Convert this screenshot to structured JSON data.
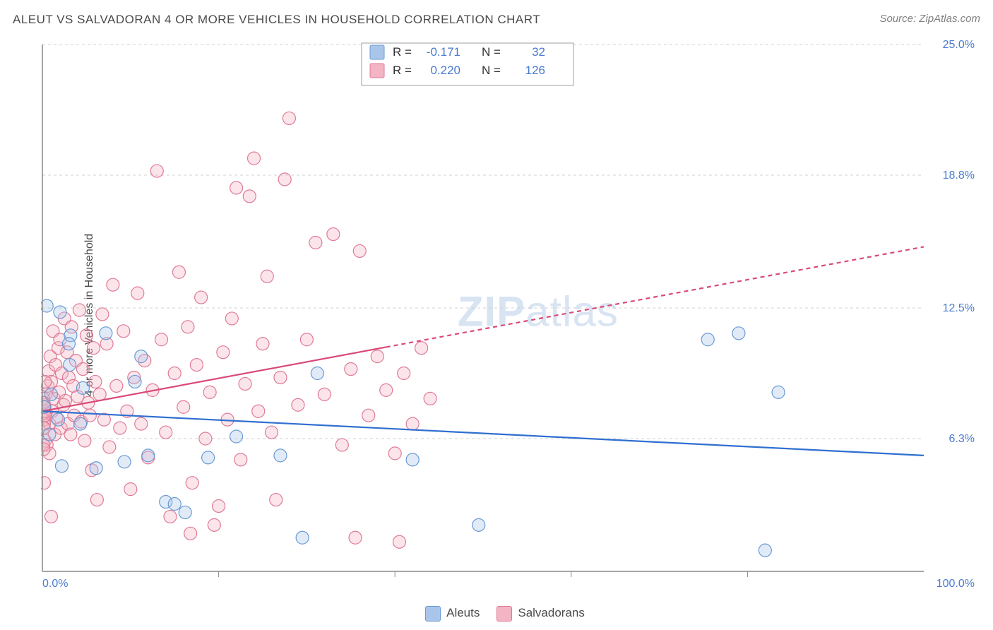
{
  "title": "ALEUT VS SALVADORAN 4 OR MORE VEHICLES IN HOUSEHOLD CORRELATION CHART",
  "source": "Source: ZipAtlas.com",
  "yaxis_label": "4 or more Vehicles in Household",
  "watermark": "ZIPatlas",
  "chart": {
    "type": "scatter",
    "xlim": [
      0,
      100
    ],
    "ylim": [
      0,
      25
    ],
    "xticks": [
      0,
      100
    ],
    "xticklabels": [
      "0.0%",
      "100.0%"
    ],
    "xtick_minor": [
      20,
      40,
      60,
      80
    ],
    "yticks": [
      6.3,
      12.5,
      18.8,
      25.0
    ],
    "yticklabels": [
      "6.3%",
      "12.5%",
      "18.8%",
      "25.0%"
    ],
    "grid_color": "#d0d0d0",
    "background_color": "#ffffff",
    "colors": {
      "series_a_stroke": "#6a9ad4",
      "series_a_fill": "#a9c6ea",
      "series_b_stroke": "#e07a96",
      "series_b_fill": "#f3b4c4",
      "trend_a": "#2f6fd0",
      "trend_b": "#d94a78",
      "tick_label": "#4a7bd0"
    },
    "marker_radius": 9,
    "series_a": {
      "label": "Aleuts",
      "R": -0.171,
      "N": 32,
      "trend": {
        "x1": 0,
        "y1": 7.6,
        "x2": 100,
        "y2": 5.5,
        "solid_until_x": 100
      },
      "points": [
        [
          0.5,
          12.6
        ],
        [
          2.0,
          12.3
        ],
        [
          3.2,
          11.2
        ],
        [
          1.0,
          8.4
        ],
        [
          3.1,
          9.8
        ],
        [
          4.6,
          8.7
        ],
        [
          7.2,
          11.3
        ],
        [
          2.2,
          5.0
        ],
        [
          6.1,
          4.9
        ],
        [
          9.3,
          5.2
        ],
        [
          10.5,
          9.0
        ],
        [
          11.2,
          10.2
        ],
        [
          14.0,
          3.3
        ],
        [
          15.0,
          3.2
        ],
        [
          16.2,
          2.8
        ],
        [
          12.0,
          5.5
        ],
        [
          18.8,
          5.4
        ],
        [
          22.0,
          6.4
        ],
        [
          27.0,
          5.5
        ],
        [
          31.2,
          9.4
        ],
        [
          29.5,
          1.6
        ],
        [
          42.0,
          5.3
        ],
        [
          49.5,
          2.2
        ],
        [
          75.5,
          11.0
        ],
        [
          79.0,
          11.3
        ],
        [
          83.5,
          8.5
        ],
        [
          82.0,
          1.0
        ],
        [
          0.8,
          6.5
        ],
        [
          4.3,
          7.0
        ],
        [
          0.2,
          7.8
        ],
        [
          1.8,
          7.2
        ],
        [
          3.0,
          10.8
        ]
      ]
    },
    "series_b": {
      "label": "Salvadorans",
      "R": 0.22,
      "N": 126,
      "trend": {
        "x1": 0,
        "y1": 7.6,
        "x2": 100,
        "y2": 15.4,
        "solid_until_x": 39
      },
      "points": [
        [
          0.1,
          6.8
        ],
        [
          0.2,
          7.2
        ],
        [
          0.2,
          7.9
        ],
        [
          0.3,
          6.2
        ],
        [
          0.4,
          8.4
        ],
        [
          0.4,
          7.5
        ],
        [
          0.5,
          6.0
        ],
        [
          0.6,
          8.8
        ],
        [
          0.7,
          9.5
        ],
        [
          0.8,
          7.0
        ],
        [
          0.8,
          5.6
        ],
        [
          0.9,
          10.2
        ],
        [
          1.0,
          9.0
        ],
        [
          1.1,
          7.6
        ],
        [
          1.2,
          11.4
        ],
        [
          1.3,
          8.2
        ],
        [
          1.4,
          6.5
        ],
        [
          1.5,
          9.8
        ],
        [
          1.6,
          7.3
        ],
        [
          1.8,
          10.6
        ],
        [
          1.9,
          8.5
        ],
        [
          2.0,
          11.0
        ],
        [
          2.1,
          6.8
        ],
        [
          2.2,
          9.4
        ],
        [
          2.4,
          7.9
        ],
        [
          2.5,
          12.0
        ],
        [
          2.6,
          8.1
        ],
        [
          2.8,
          10.4
        ],
        [
          2.9,
          7.0
        ],
        [
          3.0,
          9.2
        ],
        [
          3.2,
          6.5
        ],
        [
          3.3,
          11.6
        ],
        [
          3.5,
          8.8
        ],
        [
          3.6,
          7.4
        ],
        [
          3.8,
          10.0
        ],
        [
          4.0,
          8.3
        ],
        [
          4.2,
          12.4
        ],
        [
          4.4,
          7.1
        ],
        [
          4.6,
          9.6
        ],
        [
          4.8,
          6.2
        ],
        [
          5.0,
          11.2
        ],
        [
          5.2,
          8.0
        ],
        [
          5.4,
          7.4
        ],
        [
          5.6,
          4.8
        ],
        [
          5.8,
          10.6
        ],
        [
          6.0,
          9.0
        ],
        [
          6.2,
          3.4
        ],
        [
          6.5,
          8.4
        ],
        [
          6.8,
          12.2
        ],
        [
          7.0,
          7.2
        ],
        [
          7.3,
          10.8
        ],
        [
          7.6,
          5.9
        ],
        [
          8.0,
          13.6
        ],
        [
          8.4,
          8.8
        ],
        [
          8.8,
          6.8
        ],
        [
          9.2,
          11.4
        ],
        [
          9.6,
          7.6
        ],
        [
          10.0,
          3.9
        ],
        [
          10.4,
          9.2
        ],
        [
          10.8,
          13.2
        ],
        [
          11.2,
          7.0
        ],
        [
          11.6,
          10.0
        ],
        [
          12.0,
          5.4
        ],
        [
          12.5,
          8.6
        ],
        [
          13.0,
          19.0
        ],
        [
          13.5,
          11.0
        ],
        [
          14.0,
          6.6
        ],
        [
          14.5,
          2.6
        ],
        [
          15.0,
          9.4
        ],
        [
          15.5,
          14.2
        ],
        [
          16.0,
          7.8
        ],
        [
          16.5,
          11.6
        ],
        [
          17.0,
          4.2
        ],
        [
          17.5,
          9.8
        ],
        [
          18.0,
          13.0
        ],
        [
          18.5,
          6.3
        ],
        [
          19.0,
          8.5
        ],
        [
          19.5,
          2.2
        ],
        [
          20.0,
          3.1
        ],
        [
          20.5,
          10.4
        ],
        [
          21.0,
          7.2
        ],
        [
          21.5,
          12.0
        ],
        [
          22.0,
          18.2
        ],
        [
          22.5,
          5.3
        ],
        [
          23.0,
          8.9
        ],
        [
          23.5,
          17.8
        ],
        [
          24.0,
          19.6
        ],
        [
          24.5,
          7.6
        ],
        [
          25.0,
          10.8
        ],
        [
          25.5,
          14.0
        ],
        [
          26.0,
          6.6
        ],
        [
          27.0,
          9.2
        ],
        [
          27.5,
          18.6
        ],
        [
          28.0,
          21.5
        ],
        [
          29.0,
          7.9
        ],
        [
          30.0,
          11.0
        ],
        [
          31.0,
          15.6
        ],
        [
          32.0,
          8.4
        ],
        [
          33.0,
          16.0
        ],
        [
          34.0,
          6.0
        ],
        [
          35.0,
          9.6
        ],
        [
          36.0,
          15.2
        ],
        [
          37.0,
          7.4
        ],
        [
          38.0,
          10.2
        ],
        [
          39.0,
          8.6
        ],
        [
          40.0,
          5.6
        ],
        [
          40.5,
          1.4
        ],
        [
          41.0,
          9.4
        ],
        [
          42.0,
          7.0
        ],
        [
          43.0,
          10.6
        ],
        [
          44.0,
          8.2
        ],
        [
          35.5,
          1.6
        ],
        [
          26.5,
          3.4
        ],
        [
          16.8,
          1.8
        ],
        [
          1.0,
          2.6
        ],
        [
          0.2,
          4.2
        ],
        [
          0.2,
          7.6
        ],
        [
          0.1,
          6.0
        ],
        [
          0.1,
          8.2
        ],
        [
          0.2,
          7.0
        ],
        [
          0.3,
          9.0
        ],
        [
          0.3,
          7.4
        ],
        [
          0.15,
          5.8
        ],
        [
          0.15,
          8.0
        ],
        [
          0.18,
          6.8
        ],
        [
          0.25,
          7.8
        ]
      ]
    }
  },
  "stats_legend": {
    "rows": [
      {
        "swatch_fill": "#a9c6ea",
        "swatch_stroke": "#6a9ad4",
        "R_label": "R =",
        "R": "-0.171",
        "N_label": "N =",
        "N": "32"
      },
      {
        "swatch_fill": "#f3b4c4",
        "swatch_stroke": "#e07a96",
        "R_label": "R =",
        "R": "0.220",
        "N_label": "N =",
        "N": "126"
      }
    ]
  },
  "bottom_legend": {
    "items": [
      {
        "label": "Aleuts",
        "fill": "#a9c6ea",
        "stroke": "#6a9ad4"
      },
      {
        "label": "Salvadorans",
        "fill": "#f3b4c4",
        "stroke": "#e07a96"
      }
    ]
  }
}
